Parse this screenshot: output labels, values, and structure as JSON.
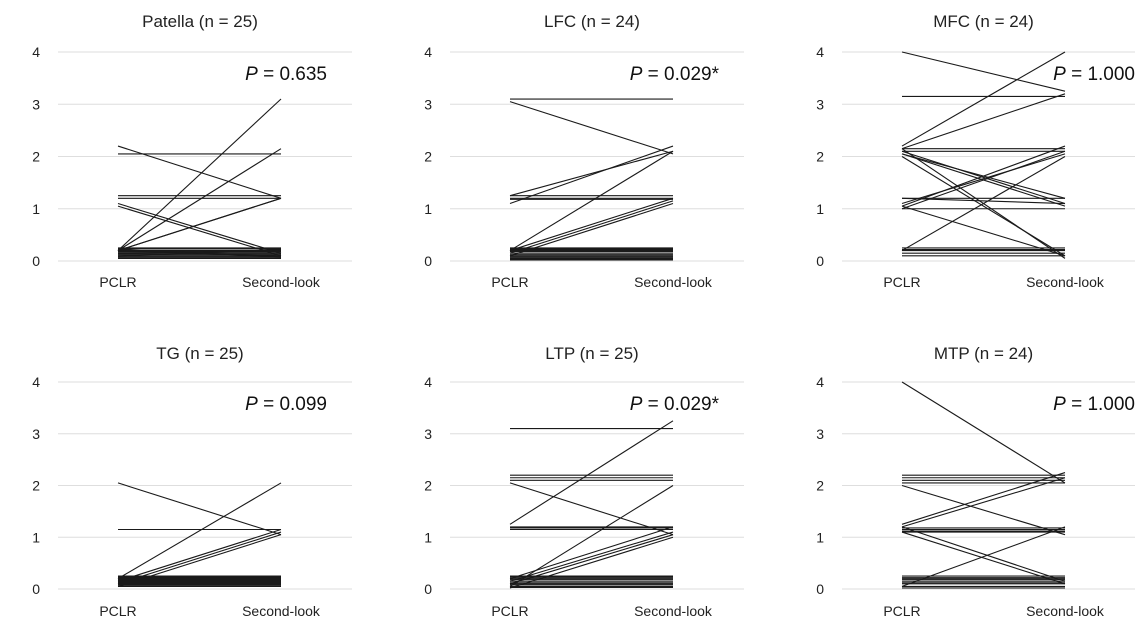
{
  "chart_data": [
    {
      "type": "line",
      "title": "Patella (n = 25)",
      "categories": [
        "PCLR",
        "Second-look"
      ],
      "ylim": [
        0,
        4
      ],
      "yticks": [
        "0",
        "1",
        "2",
        "3",
        "4"
      ],
      "grid": true,
      "annotation": {
        "italic": "P",
        "rest": " = 0.635"
      },
      "series": [
        {
          "values": [
            0.2,
            3.1
          ]
        },
        {
          "values": [
            0.2,
            2.15
          ]
        },
        {
          "values": [
            0.2,
            1.2
          ]
        },
        {
          "values": [
            0.2,
            1.2
          ]
        },
        {
          "values": [
            2.2,
            1.2
          ]
        },
        {
          "values": [
            2.05,
            2.05
          ]
        },
        {
          "values": [
            1.25,
            1.25
          ]
        },
        {
          "values": [
            1.2,
            1.2
          ]
        },
        {
          "values": [
            1.1,
            0.15
          ]
        },
        {
          "values": [
            1.05,
            0.1
          ]
        },
        {
          "values": [
            0.25,
            0.25
          ]
        },
        {
          "values": [
            0.23,
            0.23
          ]
        },
        {
          "values": [
            0.2,
            0.2
          ]
        },
        {
          "values": [
            0.18,
            0.18
          ]
        },
        {
          "values": [
            0.16,
            0.16
          ]
        },
        {
          "values": [
            0.14,
            0.14
          ]
        },
        {
          "values": [
            0.12,
            0.12
          ]
        },
        {
          "values": [
            0.1,
            0.1
          ]
        },
        {
          "values": [
            0.08,
            0.08
          ]
        },
        {
          "values": [
            0.06,
            0.06
          ]
        },
        {
          "values": [
            0.05,
            0.05
          ]
        },
        {
          "values": [
            0.2,
            0.1
          ]
        },
        {
          "values": [
            0.15,
            0.2
          ]
        },
        {
          "values": [
            0.22,
            0.08
          ]
        },
        {
          "values": [
            0.1,
            0.22
          ]
        }
      ]
    },
    {
      "type": "line",
      "title": "LFC (n = 24)",
      "categories": [
        "PCLR",
        "Second-look"
      ],
      "ylim": [
        0,
        4
      ],
      "yticks": [
        "0",
        "1",
        "2",
        "3",
        "4"
      ],
      "grid": true,
      "annotation": {
        "italic": "P",
        "rest": " = 0.029*"
      },
      "series": [
        {
          "values": [
            3.1,
            3.1
          ]
        },
        {
          "values": [
            3.05,
            2.05
          ]
        },
        {
          "values": [
            1.25,
            2.1
          ]
        },
        {
          "values": [
            1.1,
            2.2
          ]
        },
        {
          "values": [
            1.25,
            1.25
          ]
        },
        {
          "values": [
            1.2,
            1.2
          ]
        },
        {
          "values": [
            1.18,
            1.18
          ]
        },
        {
          "values": [
            0.2,
            2.1
          ]
        },
        {
          "values": [
            0.2,
            1.2
          ]
        },
        {
          "values": [
            0.15,
            1.15
          ]
        },
        {
          "values": [
            0.1,
            1.1
          ]
        },
        {
          "values": [
            0.25,
            0.25
          ]
        },
        {
          "values": [
            0.22,
            0.22
          ]
        },
        {
          "values": [
            0.15,
            0.15
          ]
        },
        {
          "values": [
            0.1,
            0.1
          ]
        },
        {
          "values": [
            0.05,
            0.05
          ]
        },
        {
          "values": [
            0.02,
            0.02
          ]
        },
        {
          "values": [
            0.2,
            0.2
          ]
        },
        {
          "values": [
            0.18,
            0.18
          ]
        },
        {
          "values": [
            0.12,
            0.12
          ]
        },
        {
          "values": [
            0.08,
            0.08
          ]
        },
        {
          "values": [
            0.06,
            0.06
          ]
        },
        {
          "values": [
            0.04,
            0.04
          ]
        },
        {
          "values": [
            0.24,
            0.24
          ]
        }
      ]
    },
    {
      "type": "line",
      "title": "MFC (n = 24)",
      "categories": [
        "PCLR",
        "Second-look"
      ],
      "ylim": [
        0,
        4
      ],
      "yticks": [
        "0",
        "1",
        "2",
        "3",
        "4"
      ],
      "grid": true,
      "annotation": {
        "italic": "P",
        "rest": " = 1.000"
      },
      "series": [
        {
          "values": [
            4.0,
            3.25
          ]
        },
        {
          "values": [
            3.15,
            3.15
          ]
        },
        {
          "values": [
            2.2,
            4.0
          ]
        },
        {
          "values": [
            2.15,
            3.2
          ]
        },
        {
          "values": [
            2.15,
            2.15
          ]
        },
        {
          "values": [
            2.1,
            2.1
          ]
        },
        {
          "values": [
            2.1,
            1.1
          ]
        },
        {
          "values": [
            2.05,
            1.05
          ]
        },
        {
          "values": [
            2.15,
            0.05
          ]
        },
        {
          "values": [
            2.0,
            0.1
          ]
        },
        {
          "values": [
            1.2,
            1.2
          ]
        },
        {
          "values": [
            1.05,
            2.2
          ]
        },
        {
          "values": [
            1.0,
            2.1
          ]
        },
        {
          "values": [
            1.1,
            2.05
          ]
        },
        {
          "values": [
            1.2,
            1.1
          ]
        },
        {
          "values": [
            0.2,
            2.0
          ]
        },
        {
          "values": [
            0.25,
            0.25
          ]
        },
        {
          "values": [
            0.2,
            0.2
          ]
        },
        {
          "values": [
            0.15,
            0.15
          ]
        },
        {
          "values": [
            0.1,
            0.1
          ]
        },
        {
          "values": [
            1.05,
            0.1
          ]
        },
        {
          "values": [
            2.05,
            1.2
          ]
        },
        {
          "values": [
            1.0,
            1.0
          ]
        },
        {
          "values": [
            0.22,
            0.22
          ]
        }
      ]
    },
    {
      "type": "line",
      "title": "TG (n = 25)",
      "categories": [
        "PCLR",
        "Second-look"
      ],
      "ylim": [
        0,
        4
      ],
      "yticks": [
        "0",
        "1",
        "2",
        "3",
        "4"
      ],
      "grid": true,
      "annotation": {
        "italic": "P",
        "rest": " = 0.099"
      },
      "series": [
        {
          "values": [
            2.05,
            1.05
          ]
        },
        {
          "values": [
            1.15,
            1.15
          ]
        },
        {
          "values": [
            0.2,
            2.05
          ]
        },
        {
          "values": [
            0.15,
            1.15
          ]
        },
        {
          "values": [
            0.1,
            1.1
          ]
        },
        {
          "values": [
            0.05,
            1.05
          ]
        },
        {
          "values": [
            0.25,
            0.25
          ]
        },
        {
          "values": [
            0.23,
            0.23
          ]
        },
        {
          "values": [
            0.2,
            0.2
          ]
        },
        {
          "values": [
            0.18,
            0.18
          ]
        },
        {
          "values": [
            0.16,
            0.16
          ]
        },
        {
          "values": [
            0.14,
            0.14
          ]
        },
        {
          "values": [
            0.12,
            0.12
          ]
        },
        {
          "values": [
            0.1,
            0.1
          ]
        },
        {
          "values": [
            0.08,
            0.08
          ]
        },
        {
          "values": [
            0.06,
            0.06
          ]
        },
        {
          "values": [
            0.05,
            0.05
          ]
        },
        {
          "values": [
            0.22,
            0.22
          ]
        },
        {
          "values": [
            0.21,
            0.21
          ]
        },
        {
          "values": [
            0.19,
            0.19
          ]
        },
        {
          "values": [
            0.17,
            0.17
          ]
        },
        {
          "values": [
            0.15,
            0.15
          ]
        },
        {
          "values": [
            0.13,
            0.13
          ]
        },
        {
          "values": [
            0.11,
            0.11
          ]
        },
        {
          "values": [
            0.09,
            0.09
          ]
        }
      ]
    },
    {
      "type": "line",
      "title": "LTP (n = 25)",
      "categories": [
        "PCLR",
        "Second-look"
      ],
      "ylim": [
        0,
        4
      ],
      "yticks": [
        "0",
        "1",
        "2",
        "3",
        "4"
      ],
      "grid": true,
      "annotation": {
        "italic": "P",
        "rest": " = 0.029*"
      },
      "series": [
        {
          "values": [
            3.1,
            3.1
          ]
        },
        {
          "values": [
            2.2,
            2.2
          ]
        },
        {
          "values": [
            2.15,
            2.15
          ]
        },
        {
          "values": [
            2.1,
            2.1
          ]
        },
        {
          "values": [
            2.05,
            1.05
          ]
        },
        {
          "values": [
            1.25,
            3.25
          ]
        },
        {
          "values": [
            1.2,
            1.2
          ]
        },
        {
          "values": [
            1.15,
            1.15
          ]
        },
        {
          "values": [
            0.2,
            1.2
          ]
        },
        {
          "values": [
            0.15,
            1.1
          ]
        },
        {
          "values": [
            0.1,
            1.05
          ]
        },
        {
          "values": [
            0.05,
            2.0
          ]
        },
        {
          "values": [
            0.02,
            1.0
          ]
        },
        {
          "values": [
            0.25,
            0.25
          ]
        },
        {
          "values": [
            0.2,
            0.2
          ]
        },
        {
          "values": [
            0.15,
            0.15
          ]
        },
        {
          "values": [
            0.1,
            0.1
          ]
        },
        {
          "values": [
            0.05,
            0.05
          ]
        },
        {
          "values": [
            0.22,
            0.22
          ]
        },
        {
          "values": [
            0.18,
            0.18
          ]
        },
        {
          "values": [
            0.12,
            0.12
          ]
        },
        {
          "values": [
            0.08,
            0.08
          ]
        },
        {
          "values": [
            0.24,
            0.24
          ]
        },
        {
          "values": [
            0.03,
            0.03
          ]
        },
        {
          "values": [
            1.18,
            1.18
          ]
        }
      ]
    },
    {
      "type": "line",
      "title": "MTP (n = 24)",
      "categories": [
        "PCLR",
        "Second-look"
      ],
      "ylim": [
        0,
        4
      ],
      "yticks": [
        "0",
        "1",
        "2",
        "3",
        "4"
      ],
      "grid": true,
      "annotation": {
        "italic": "P",
        "rest": " = 1.000"
      },
      "series": [
        {
          "values": [
            4.0,
            2.05
          ]
        },
        {
          "values": [
            2.2,
            2.2
          ]
        },
        {
          "values": [
            2.1,
            2.1
          ]
        },
        {
          "values": [
            2.05,
            2.05
          ]
        },
        {
          "values": [
            2.0,
            1.05
          ]
        },
        {
          "values": [
            1.25,
            2.25
          ]
        },
        {
          "values": [
            1.2,
            2.15
          ]
        },
        {
          "values": [
            1.15,
            1.15
          ]
        },
        {
          "values": [
            1.2,
            0.15
          ]
        },
        {
          "values": [
            1.1,
            0.1
          ]
        },
        {
          "values": [
            0.05,
            1.2
          ]
        },
        {
          "values": [
            1.18,
            1.18
          ]
        },
        {
          "values": [
            0.25,
            0.25
          ]
        },
        {
          "values": [
            0.22,
            0.22
          ]
        },
        {
          "values": [
            0.2,
            0.2
          ]
        },
        {
          "values": [
            0.15,
            0.15
          ]
        },
        {
          "values": [
            0.1,
            0.1
          ]
        },
        {
          "values": [
            0.05,
            0.05
          ]
        },
        {
          "values": [
            0.02,
            0.02
          ]
        },
        {
          "values": [
            1.12,
            1.12
          ]
        },
        {
          "values": [
            2.15,
            2.15
          ]
        },
        {
          "values": [
            0.18,
            0.18
          ]
        },
        {
          "values": [
            0.12,
            0.12
          ]
        },
        {
          "values": [
            1.1,
            1.1
          ]
        }
      ]
    }
  ]
}
